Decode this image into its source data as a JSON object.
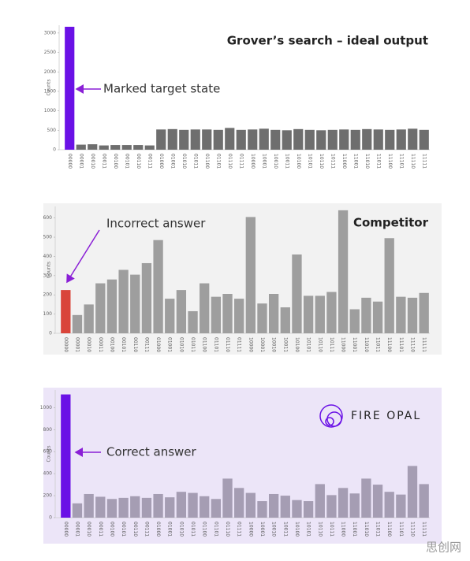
{
  "chart_data": [
    {
      "type": "bar",
      "title": "Grover’s search – ideal output",
      "ylabel": "Counts",
      "annotation": "Marked target state",
      "background": "#ffffff",
      "categories": [
        "00000",
        "00001",
        "00010",
        "00011",
        "00100",
        "00101",
        "00110",
        "00111",
        "01000",
        "01001",
        "01010",
        "01011",
        "01100",
        "01101",
        "01110",
        "01111",
        "10000",
        "10001",
        "10010",
        "10011",
        "10100",
        "10101",
        "10110",
        "10111",
        "11000",
        "11001",
        "11010",
        "11011",
        "11100",
        "11101",
        "11110",
        "11111"
      ],
      "values": [
        3160,
        130,
        140,
        110,
        120,
        120,
        120,
        110,
        520,
        530,
        510,
        520,
        520,
        510,
        560,
        510,
        520,
        540,
        510,
        500,
        530,
        510,
        500,
        510,
        520,
        510,
        530,
        520,
        510,
        520,
        540,
        510
      ],
      "colors": [
        "#6a11e6",
        "#6e6e6e",
        "#6e6e6e",
        "#6e6e6e",
        "#6e6e6e",
        "#6e6e6e",
        "#6e6e6e",
        "#6e6e6e",
        "#6e6e6e",
        "#6e6e6e",
        "#6e6e6e",
        "#6e6e6e",
        "#6e6e6e",
        "#6e6e6e",
        "#6e6e6e",
        "#6e6e6e",
        "#6e6e6e",
        "#6e6e6e",
        "#6e6e6e",
        "#6e6e6e",
        "#6e6e6e",
        "#6e6e6e",
        "#6e6e6e",
        "#6e6e6e",
        "#6e6e6e",
        "#6e6e6e",
        "#6e6e6e",
        "#6e6e6e",
        "#6e6e6e",
        "#6e6e6e",
        "#6e6e6e",
        "#6e6e6e"
      ],
      "ylim": [
        0,
        3200
      ],
      "yticks": [
        0,
        500,
        1000,
        1500,
        2000,
        2500,
        3000
      ]
    },
    {
      "type": "bar",
      "title": "Competitor",
      "ylabel": "Counts",
      "annotation": "Incorrect answer",
      "background": "#f2f2f2",
      "categories": [
        "00000",
        "00001",
        "00010",
        "00011",
        "00100",
        "00101",
        "00110",
        "00111",
        "01000",
        "01001",
        "01010",
        "01011",
        "01100",
        "01101",
        "01110",
        "01111",
        "10000",
        "10001",
        "10010",
        "10011",
        "10100",
        "10101",
        "10110",
        "10111",
        "11000",
        "11001",
        "11010",
        "11011",
        "11100",
        "11101",
        "11110",
        "11111"
      ],
      "values": [
        225,
        95,
        150,
        260,
        280,
        330,
        305,
        365,
        485,
        180,
        225,
        115,
        260,
        190,
        205,
        180,
        605,
        155,
        205,
        135,
        410,
        195,
        195,
        215,
        640,
        125,
        185,
        165,
        495,
        190,
        185,
        210
      ],
      "colors": [
        "#d9443a",
        "#9e9e9e",
        "#9e9e9e",
        "#9e9e9e",
        "#9e9e9e",
        "#9e9e9e",
        "#9e9e9e",
        "#9e9e9e",
        "#9e9e9e",
        "#9e9e9e",
        "#9e9e9e",
        "#9e9e9e",
        "#9e9e9e",
        "#9e9e9e",
        "#9e9e9e",
        "#9e9e9e",
        "#9e9e9e",
        "#9e9e9e",
        "#9e9e9e",
        "#9e9e9e",
        "#9e9e9e",
        "#9e9e9e",
        "#9e9e9e",
        "#9e9e9e",
        "#9e9e9e",
        "#9e9e9e",
        "#9e9e9e",
        "#9e9e9e",
        "#9e9e9e",
        "#9e9e9e",
        "#9e9e9e",
        "#9e9e9e"
      ],
      "ylim": [
        0,
        660
      ],
      "yticks": [
        0,
        100,
        200,
        300,
        400,
        500,
        600
      ]
    },
    {
      "type": "bar",
      "title": "FIRE OPAL",
      "ylabel": "Counts",
      "annotation": "Correct answer",
      "background": "#ece5f8",
      "categories": [
        "00000",
        "00001",
        "00010",
        "00011",
        "00100",
        "00101",
        "00110",
        "00111",
        "01000",
        "01001",
        "01010",
        "01011",
        "01100",
        "01101",
        "01110",
        "01111",
        "10000",
        "10001",
        "10010",
        "10011",
        "10100",
        "10101",
        "10110",
        "10111",
        "11000",
        "11001",
        "11010",
        "11011",
        "11100",
        "11101",
        "11110",
        "11111"
      ],
      "values": [
        1120,
        130,
        215,
        190,
        170,
        180,
        195,
        180,
        215,
        185,
        235,
        225,
        195,
        170,
        355,
        270,
        225,
        150,
        215,
        200,
        160,
        150,
        305,
        205,
        270,
        220,
        355,
        300,
        235,
        210,
        470,
        305
      ],
      "colors": [
        "#6a11e6",
        "#a59db3",
        "#a59db3",
        "#a59db3",
        "#a59db3",
        "#a59db3",
        "#a59db3",
        "#a59db3",
        "#a59db3",
        "#a59db3",
        "#a59db3",
        "#a59db3",
        "#a59db3",
        "#a59db3",
        "#a59db3",
        "#a59db3",
        "#a59db3",
        "#a59db3",
        "#a59db3",
        "#a59db3",
        "#a59db3",
        "#a59db3",
        "#a59db3",
        "#a59db3",
        "#a59db3",
        "#a59db3",
        "#a59db3",
        "#a59db3",
        "#a59db3",
        "#a59db3",
        "#a59db3",
        "#a59db3"
      ],
      "ylim": [
        0,
        1160
      ],
      "yticks": [
        0,
        200,
        400,
        600,
        800,
        1000
      ]
    }
  ],
  "watermark": "思创网"
}
